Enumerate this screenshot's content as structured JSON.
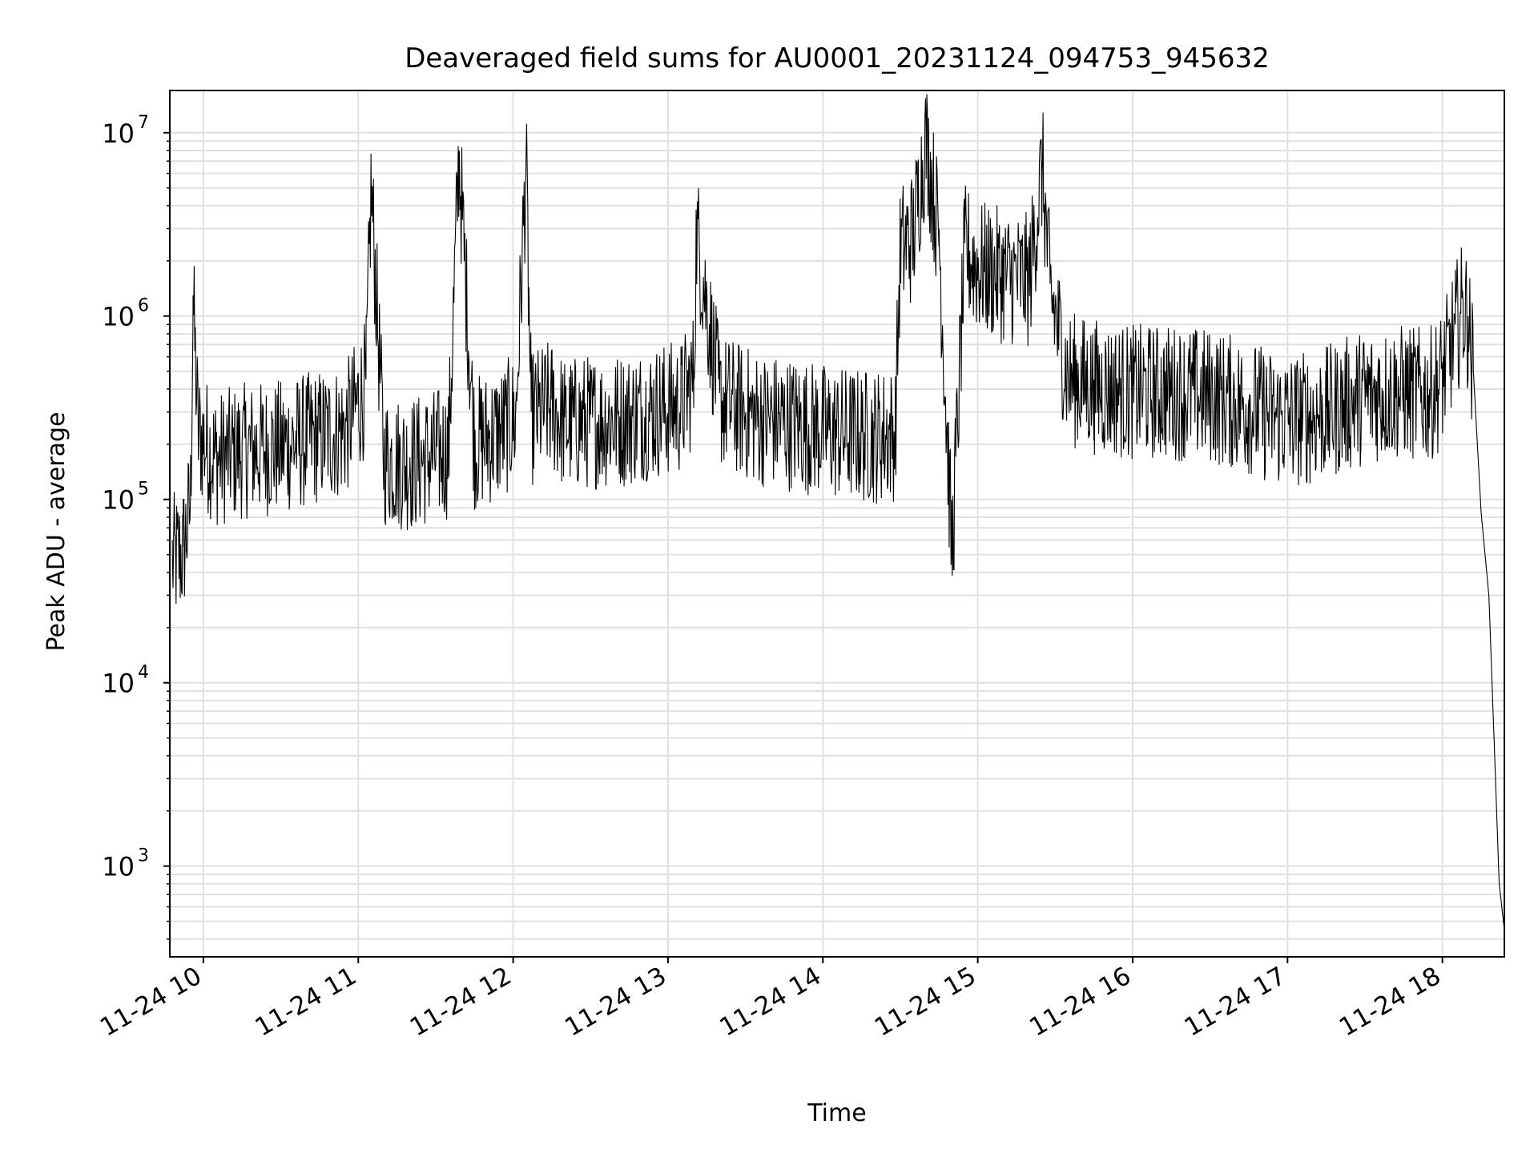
{
  "chart_data": {
    "type": "line",
    "title": "Deaveraged field sums for AU0001_20231124_094753_945632",
    "xlabel": "Time",
    "ylabel": "Peak ADU - average",
    "yscale": "log",
    "xlim": [
      "2023-11-24 09:47",
      "2023-11-24 18:24"
    ],
    "ylim": [
      320,
      17000000
    ],
    "grid": true,
    "line_color": "#000000",
    "grid_color": "#e0e0e0",
    "x_ticks": [
      "11-24 10",
      "11-24 11",
      "11-24 12",
      "11-24 13",
      "11-24 14",
      "11-24 15",
      "11-24 16",
      "11-24 17",
      "11-24 18"
    ],
    "x_tick_values": [
      "2023-11-24 10:00",
      "2023-11-24 11:00",
      "2023-11-24 12:00",
      "2023-11-24 13:00",
      "2023-11-24 14:00",
      "2023-11-24 15:00",
      "2023-11-24 16:00",
      "2023-11-24 17:00",
      "2023-11-24 18:00"
    ],
    "y_ticks": [
      {
        "value": 1000,
        "base": "10",
        "exp": "3"
      },
      {
        "value": 10000,
        "base": "10",
        "exp": "4"
      },
      {
        "value": 100000,
        "base": "10",
        "exp": "5"
      },
      {
        "value": 1000000,
        "base": "10",
        "exp": "6"
      },
      {
        "value": 10000000,
        "base": "10",
        "exp": "7"
      }
    ],
    "series": [
      {
        "x": [
          "2023-11-24 09:48",
          "2023-11-24 09:52",
          "2023-11-24 09:55",
          "2023-11-24 09:56",
          "2023-11-24 09:58",
          "2023-11-24 10:05",
          "2023-11-24 10:15",
          "2023-11-24 10:30",
          "2023-11-24 10:45",
          "2023-11-24 10:55",
          "2023-11-24 11:03",
          "2023-11-24 11:05",
          "2023-11-24 11:10",
          "2023-11-24 11:20",
          "2023-11-24 11:35",
          "2023-11-24 11:39",
          "2023-11-24 11:45",
          "2023-11-24 11:55",
          "2023-11-24 12:01",
          "2023-11-24 12:05",
          "2023-11-24 12:07",
          "2023-11-24 12:10",
          "2023-11-24 12:15",
          "2023-11-24 12:20",
          "2023-11-24 12:30",
          "2023-11-24 12:45",
          "2023-11-24 12:50",
          "2023-11-24 13:05",
          "2023-11-24 13:10",
          "2023-11-24 13:11",
          "2023-11-24 13:20",
          "2023-11-24 13:35",
          "2023-11-24 13:50",
          "2023-11-24 14:05",
          "2023-11-24 14:20",
          "2023-11-24 14:28",
          "2023-11-24 14:30",
          "2023-11-24 14:35",
          "2023-11-24 14:40",
          "2023-11-24 14:45",
          "2023-11-24 14:50",
          "2023-11-24 14:55",
          "2023-11-24 15:00",
          "2023-11-24 15:10",
          "2023-11-24 15:20",
          "2023-11-24 15:25",
          "2023-11-24 15:28",
          "2023-11-24 15:35",
          "2023-11-24 15:45",
          "2023-11-24 16:00",
          "2023-11-24 16:15",
          "2023-11-24 16:30",
          "2023-11-24 16:45",
          "2023-11-24 16:55",
          "2023-11-24 17:05",
          "2023-11-24 17:15",
          "2023-11-24 17:30",
          "2023-11-24 17:45",
          "2023-11-24 17:55",
          "2023-11-24 18:00",
          "2023-11-24 18:05",
          "2023-11-24 18:08",
          "2023-11-24 18:10",
          "2023-11-24 18:12",
          "2023-11-24 18:15",
          "2023-11-24 18:18",
          "2023-11-24 18:20",
          "2023-11-24 18:22",
          "2023-11-24 18:24"
        ],
        "y": [
          50000,
          55000,
          100000,
          1300000,
          250000,
          180000,
          200000,
          210000,
          240000,
          260000,
          450000,
          5500000,
          180000,
          170000,
          200000,
          8000000,
          220000,
          250000,
          300000,
          7300000,
          300000,
          320000,
          350000,
          280000,
          290000,
          300000,
          320000,
          350000,
          500000,
          3200000,
          380000,
          300000,
          280000,
          250000,
          240000,
          250000,
          2500000,
          3000000,
          10000000,
          3000000,
          55000,
          2500000,
          2000000,
          1800000,
          1700000,
          7000000,
          1500000,
          500000,
          450000,
          420000,
          420000,
          400000,
          350000,
          300000,
          300000,
          320000,
          400000,
          420000,
          400000,
          500000,
          900000,
          1200000,
          1000000,
          500000,
          85000,
          30000,
          5000,
          800,
          450
        ]
      }
    ]
  }
}
